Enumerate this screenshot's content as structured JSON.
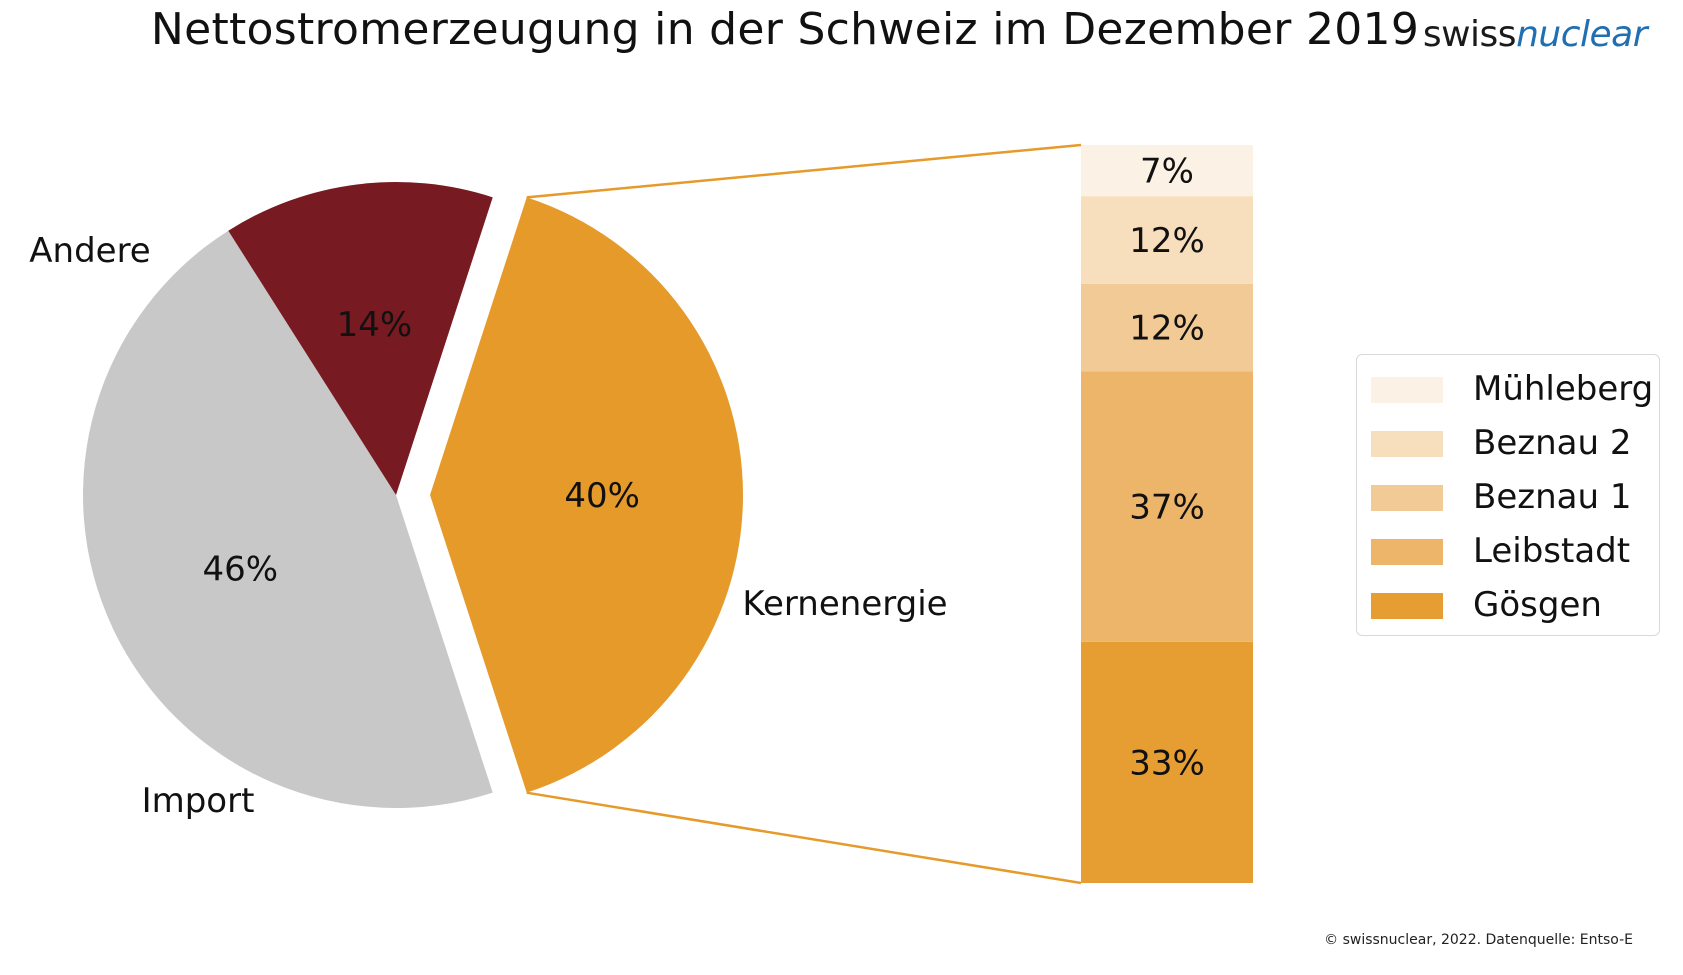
{
  "title": "Nettostromerzeugung in der Schweiz im Dezember 2019",
  "logo": {
    "part1": "swiss",
    "part2": "nuclear"
  },
  "footer": "© swissnuclear, 2022. Datenquelle: Entso-E",
  "chart_data": [
    {
      "type": "pie",
      "slices": [
        {
          "name": "Andere",
          "value": 46,
          "label": "46%",
          "color": "#C8C8C8"
        },
        {
          "name": "Import",
          "value": 14,
          "label": "14%",
          "color": "#781A21"
        },
        {
          "name": "Kernenergie",
          "value": 40,
          "label": "40%",
          "color": "#E69A2A",
          "exploded": true
        }
      ]
    },
    {
      "type": "bar",
      "stacked": true,
      "parent": "Kernenergie",
      "series": [
        {
          "name": "Gösgen",
          "value": 33,
          "label": "33%",
          "color": "#E69E33"
        },
        {
          "name": "Leibstadt",
          "value": 37,
          "label": "37%",
          "color": "#EDB56A"
        },
        {
          "name": "Beznau 1",
          "value": 12,
          "label": "12%",
          "color": "#F2CA95"
        },
        {
          "name": "Beznau 2",
          "value": 12,
          "label": "12%",
          "color": "#F7DFBD"
        },
        {
          "name": "Mühleberg",
          "value": 7,
          "label": "7%",
          "color": "#FBF1E4"
        }
      ]
    }
  ],
  "legend": [
    {
      "label": "Mühleberg",
      "color": "#FBF1E4"
    },
    {
      "label": "Beznau 2",
      "color": "#F7DFBD"
    },
    {
      "label": "Beznau 1",
      "color": "#F2CA95"
    },
    {
      "label": "Leibstadt",
      "color": "#EDB56A"
    },
    {
      "label": "Gösgen",
      "color": "#E69E33"
    }
  ],
  "connector_color": "#E69A2A"
}
